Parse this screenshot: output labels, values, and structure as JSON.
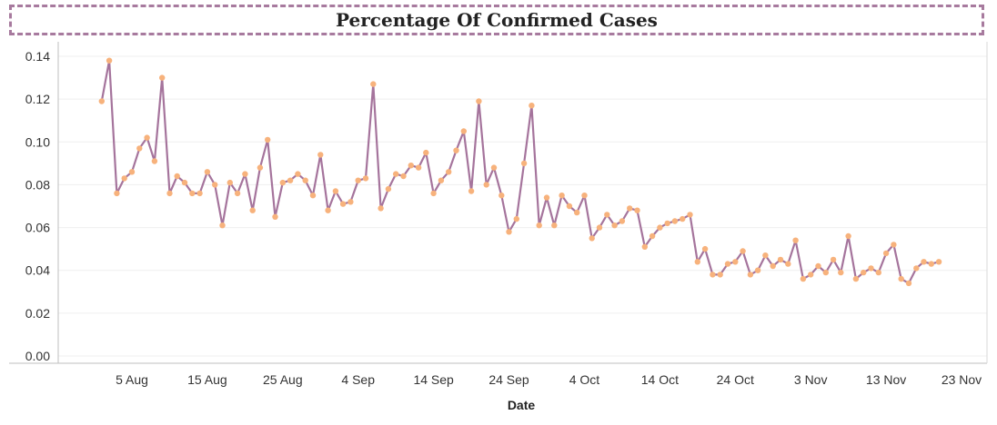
{
  "chart_data": {
    "type": "line",
    "title": "Percentage Of Confirmed Cases",
    "xlabel": "Date",
    "ylabel": "",
    "ylim": [
      0,
      0.145
    ],
    "y_ticks": [
      "0.00",
      "0.02",
      "0.04",
      "0.06",
      "0.08",
      "0.10",
      "0.12",
      "0.14"
    ],
    "x_ticks": [
      {
        "label": "5 Aug",
        "date": "2020-08-05"
      },
      {
        "label": "15 Aug",
        "date": "2020-08-15"
      },
      {
        "label": "25 Aug",
        "date": "2020-08-25"
      },
      {
        "label": "4 Sep",
        "date": "2020-09-04"
      },
      {
        "label": "14 Sep",
        "date": "2020-09-14"
      },
      {
        "label": "24 Sep",
        "date": "2020-09-24"
      },
      {
        "label": "4 Oct",
        "date": "2020-10-04"
      },
      {
        "label": "14 Oct",
        "date": "2020-10-14"
      },
      {
        "label": "24 Oct",
        "date": "2020-10-24"
      },
      {
        "label": "3 Nov",
        "date": "2020-11-03"
      },
      {
        "label": "13 Nov",
        "date": "2020-11-13"
      },
      {
        "label": "23 Nov",
        "date": "2020-11-23"
      }
    ],
    "x_start": "2020-08-01",
    "x_range": [
      "2019-07-26",
      "2020-11-24"
    ],
    "line_color": "#a5749c",
    "marker_color": "#f7b27c",
    "grid": "horizontal",
    "series": [
      {
        "values": [
          0.119,
          0.138,
          0.076,
          0.083,
          0.086,
          0.097,
          0.102,
          0.091,
          0.13,
          0.076,
          0.084,
          0.081,
          0.076,
          0.076,
          0.086,
          0.08,
          0.061,
          0.081,
          0.076,
          0.085,
          0.068,
          0.088,
          0.101,
          0.065,
          0.081,
          0.082,
          0.085,
          0.082,
          0.075,
          0.094,
          0.068,
          0.077,
          0.071,
          0.072,
          0.082,
          0.083,
          0.127,
          0.069,
          0.078,
          0.085,
          0.084,
          0.089,
          0.088,
          0.095,
          0.076,
          0.082,
          0.086,
          0.096,
          0.105,
          0.077,
          0.119,
          0.08,
          0.088,
          0.075,
          0.058,
          0.064,
          0.09,
          0.117,
          0.061,
          0.074,
          0.061,
          0.075,
          0.07,
          0.067,
          0.075,
          0.055,
          0.06,
          0.066,
          0.061,
          0.063,
          0.069,
          0.068,
          0.051,
          0.056,
          0.06,
          0.062,
          0.063,
          0.064,
          0.066,
          0.044,
          0.05,
          0.038,
          0.038,
          0.043,
          0.044,
          0.049,
          0.038,
          0.04,
          0.047,
          0.042,
          0.045,
          0.043,
          0.054,
          0.036,
          0.038,
          0.042,
          0.039,
          0.045,
          0.039,
          0.056,
          0.036,
          0.039,
          0.041,
          0.039,
          0.048,
          0.052,
          0.036,
          0.034,
          0.041,
          0.044,
          0.043,
          0.044
        ]
      }
    ]
  }
}
